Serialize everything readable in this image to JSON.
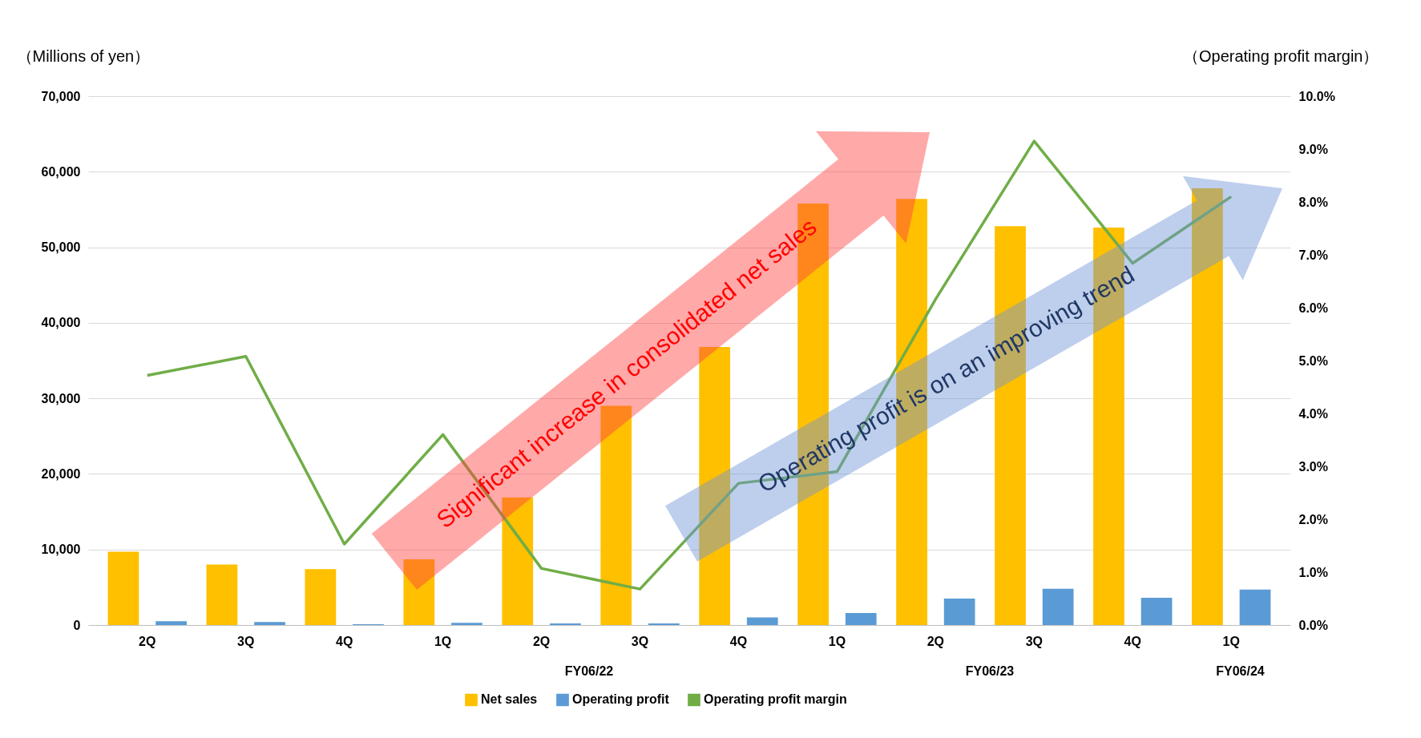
{
  "chart_data": {
    "type": "bar",
    "ylabel": "（Millions of yen）",
    "y2label": "（Operating profit margin）",
    "categories": [
      "2Q",
      "3Q",
      "4Q",
      "1Q",
      "2Q",
      "3Q",
      "4Q",
      "1Q",
      "2Q",
      "3Q",
      "4Q",
      "1Q"
    ],
    "series": [
      {
        "name": "Net sales",
        "color": "#ffc000",
        "values": [
          9700,
          8000,
          7400,
          8700,
          16900,
          29000,
          36800,
          55800,
          56400,
          52800,
          52600,
          57800
        ]
      },
      {
        "name": "Operating profit",
        "color": "#5b9bd5",
        "values": [
          500,
          400,
          100,
          300,
          200,
          200,
          1000,
          1600,
          3500,
          4800,
          3600,
          4700
        ]
      },
      {
        "name": "Operating profit margin",
        "type": "line",
        "axis": "y2",
        "color": "#70ad47",
        "values": [
          4.72,
          5.08,
          1.53,
          3.6,
          1.07,
          0.68,
          2.68,
          2.9,
          6.16,
          9.15,
          6.84,
          8.1
        ]
      }
    ],
    "ylim": [
      0,
      70000
    ],
    "yticks": [
      0,
      {
        "value": 10000,
        "label": "10,000"
      },
      {
        "value": 20000,
        "label": "20,000"
      },
      {
        "value": 30000,
        "label": "30,000"
      },
      {
        "value": 40000,
        "label": "40,000"
      },
      {
        "value": 50000,
        "label": "50,000"
      },
      {
        "value": 60000,
        "label": "60,000"
      },
      {
        "value": 70000,
        "label": "70,000"
      }
    ],
    "y2lim": [
      0,
      10
    ],
    "y2ticks": [
      {
        "value": 0,
        "label": "0.0%"
      },
      {
        "value": 1,
        "label": "1.0%"
      },
      {
        "value": 2,
        "label": "2.0%"
      },
      {
        "value": 3,
        "label": "3.0%"
      },
      {
        "value": 4,
        "label": "4.0%"
      },
      {
        "value": 5,
        "label": "5.0%"
      },
      {
        "value": 6,
        "label": "6.0%"
      },
      {
        "value": 7,
        "label": "7.0%"
      },
      {
        "value": 8,
        "label": "8.0%"
      },
      {
        "value": 9,
        "label": "9.0%"
      },
      {
        "value": 10,
        "label": "10.0%"
      }
    ],
    "grid": "y",
    "legend": "bottom",
    "annotations": [
      "Significant increase in consolidated net sales",
      "Operating profit is on an improving trend",
      "FY06/22",
      "FY06/23",
      "FY06/24"
    ]
  }
}
